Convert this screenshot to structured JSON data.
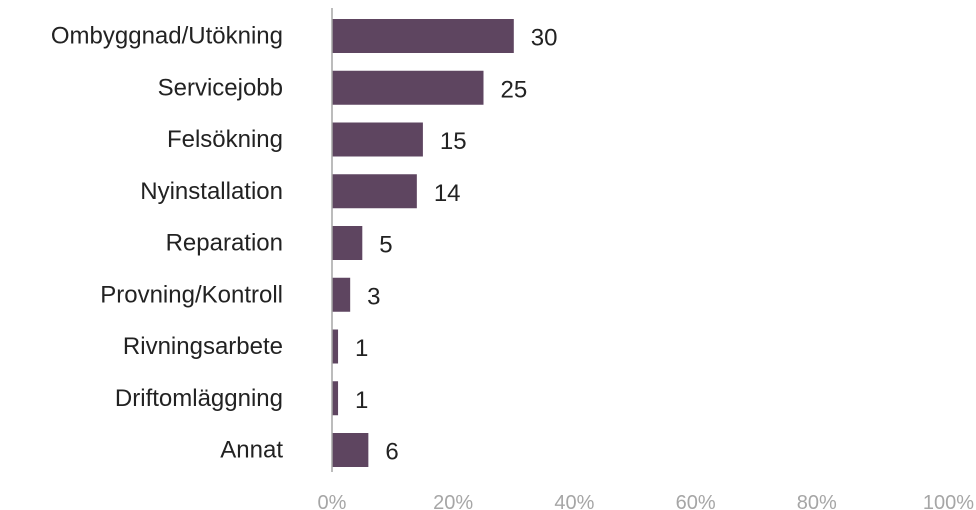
{
  "chart_data": {
    "type": "bar",
    "orientation": "horizontal",
    "categories": [
      "Ombyggnad/Utökning",
      "Servicejobb",
      "Felsökning",
      "Nyinstallation",
      "Reparation",
      "Provning/Kontroll",
      "Rivningsarbete",
      "Driftomläggning",
      "Annat"
    ],
    "values": [
      30,
      25,
      15,
      14,
      5,
      3,
      1,
      1,
      6
    ],
    "value_labels": [
      "30",
      "25",
      "15",
      "14",
      "5",
      "3",
      "1",
      "1",
      "6"
    ],
    "xlim": [
      0,
      100
    ],
    "x_ticks": [
      0,
      20,
      40,
      60,
      80,
      100
    ],
    "x_tick_labels": [
      "0%",
      "20%",
      "40%",
      "60%",
      "80%",
      "100%"
    ],
    "grid": false,
    "legend": "none",
    "colors": {
      "bar": "#5e4560",
      "axis": "#a6a6a6",
      "text": "#222222",
      "tick_text": "#a6a6a6"
    }
  }
}
